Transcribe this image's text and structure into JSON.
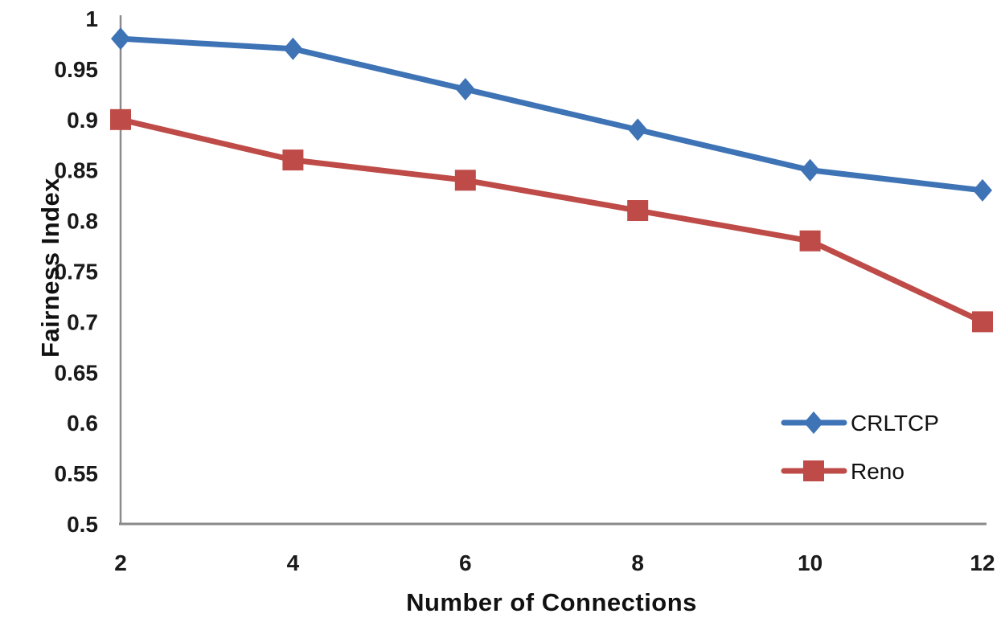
{
  "chart_data": {
    "type": "line",
    "title": "",
    "xlabel": "Number of Connections",
    "ylabel": "Fairness Index",
    "x": [
      2,
      4,
      6,
      8,
      10,
      12
    ],
    "series": [
      {
        "name": "CRLTCP",
        "color": "#3E73B5",
        "marker": "diamond",
        "values": [
          0.98,
          0.97,
          0.93,
          0.89,
          0.85,
          0.83
        ]
      },
      {
        "name": "Reno",
        "color": "#BE4B47",
        "marker": "square",
        "values": [
          0.9,
          0.86,
          0.84,
          0.81,
          0.78,
          0.7
        ]
      }
    ],
    "xlim": [
      2,
      12
    ],
    "ylim": [
      0.5,
      1.0
    ],
    "x_ticks": [
      2,
      4,
      6,
      8,
      10,
      12
    ],
    "x_tick_labels": [
      "2",
      "4",
      "6",
      "8",
      "10",
      "12"
    ],
    "y_ticks": [
      1,
      0.95,
      0.9,
      0.85,
      0.8,
      0.75,
      0.7,
      0.65,
      0.6,
      0.55,
      0.5
    ],
    "y_tick_labels": [
      "1",
      "0.95",
      "0.9",
      "0.85",
      "0.8",
      "0.75",
      "0.7",
      "0.65",
      "0.6",
      "0.55",
      "0.5"
    ],
    "grid": false,
    "legend_position": "right-middle",
    "axis_color": "#8a8a8a",
    "text_color": "#1a1a1a"
  }
}
